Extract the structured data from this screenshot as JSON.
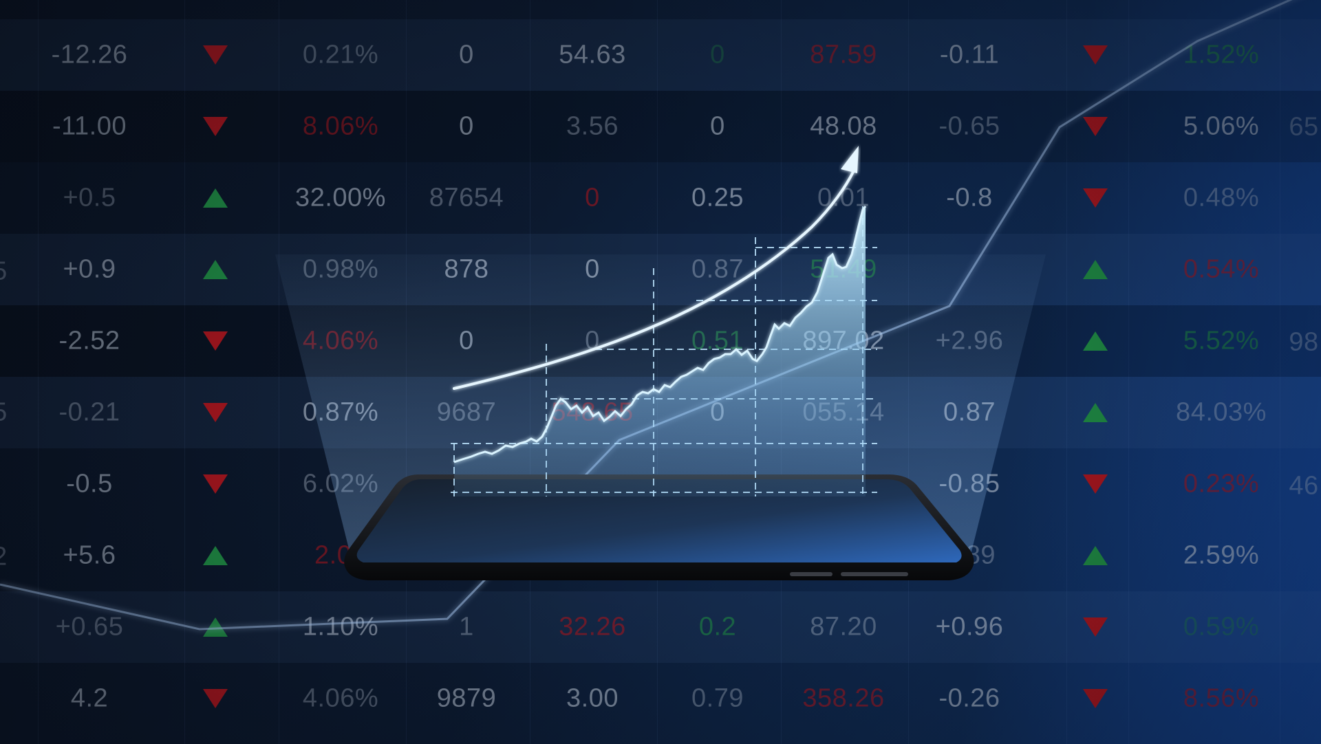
{
  "scene": {
    "title": "",
    "colors": {
      "positive": "#1f8a43",
      "negative": "#a8161e",
      "neutral_text": "#b9c4d3",
      "hologram": "#bfe6ff",
      "phone_screen_top": "#1d2a3b",
      "phone_screen_bottom": "#2d66b8"
    }
  },
  "table": {
    "rows": [
      [
        "-12.26",
        "down",
        "0.21%",
        "0",
        "54.63",
        "0",
        "87.59",
        "-0.11",
        "down",
        "1.52%"
      ],
      [
        "-11.00",
        "down",
        "8.06%",
        "0",
        "3.56",
        "0",
        "48.08",
        "-0.65",
        "down",
        "5.06%"
      ],
      [
        "+0.5",
        "up",
        "32.00%",
        "87654",
        "0",
        "0.25",
        "0.01",
        "-0.8",
        "down",
        "0.48%"
      ],
      [
        "+0.9",
        "up",
        "0.98%",
        "878",
        "0",
        "0.87",
        "51.49",
        "",
        "up",
        "0.54%"
      ],
      [
        "-2.52",
        "down",
        "4.06%",
        "0",
        "0",
        "0.51",
        "897.02",
        "+2.96",
        "up",
        "5.52%"
      ],
      [
        "-0.21",
        "down",
        "0.87%",
        "9687",
        "548.65",
        "0",
        "055.14",
        "0.87",
        "up",
        "84.03%"
      ],
      [
        "-0.5",
        "down",
        "6.02%",
        "",
        "",
        "",
        "",
        "-0.85",
        "down",
        "0.23%"
      ],
      [
        "+5.6",
        "up",
        "2.08",
        "",
        "",
        "",
        "",
        "0.89",
        "up",
        "2.59%"
      ],
      [
        "+0.65",
        "up",
        "1.10%",
        "1",
        "32.26",
        "0.2",
        "87.20",
        "+0.96",
        "down",
        "0.59%"
      ],
      [
        "4.2",
        "down",
        "4.06%",
        "9879",
        "3.00",
        "0.79",
        "358.26",
        "-0.26",
        "down",
        "8.56%"
      ]
    ],
    "edge_fragments": [
      "5",
      "5",
      "2",
      "65",
      "98",
      "46"
    ]
  },
  "hologram_chart": {
    "type": "area",
    "trend": "rising",
    "arrow": "curved-up-right"
  }
}
